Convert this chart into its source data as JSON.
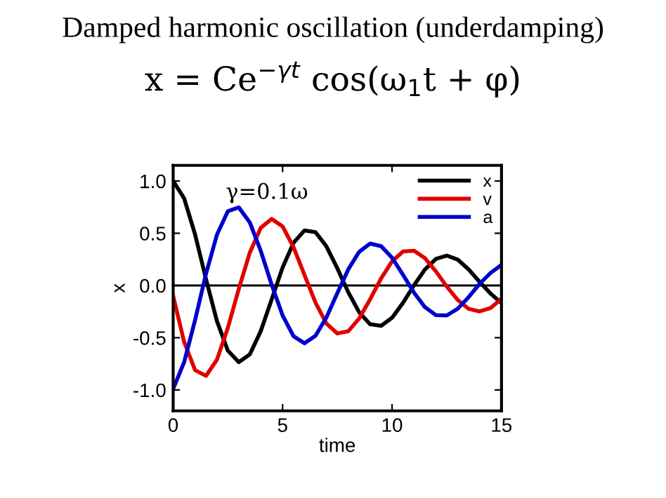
{
  "chart_data": {
    "type": "line",
    "title": "Damped harmonic oscillation (underdamping)",
    "subtitle": "x = Ce$^{−γt}$ cos(ω$_{1}$t + φ)",
    "xlabel": "time",
    "ylabel": "x",
    "annotations": [
      "γ=0.1ω"
    ],
    "x": [
      0,
      0.5,
      1,
      1.5,
      2,
      2.5,
      3,
      3.5,
      4,
      4.5,
      5,
      5.5,
      6,
      6.5,
      7,
      7.5,
      8,
      8.5,
      9,
      9.5,
      10,
      10.5,
      11,
      11.5,
      12,
      12.5,
      13,
      13.5,
      14,
      14.5,
      15
    ],
    "series": [
      {
        "name": "x",
        "color": "#000000",
        "values": [
          1,
          0.835,
          0.489,
          0.061,
          -0.341,
          -0.624,
          -0.734,
          -0.66,
          -0.438,
          -0.134,
          0.172,
          0.409,
          0.527,
          0.51,
          0.375,
          0.164,
          -0.065,
          -0.257,
          -0.371,
          -0.386,
          -0.309,
          -0.166,
          0.001,
          0.153,
          0.254,
          0.286,
          0.248,
          0.154,
          0.034,
          -0.077,
          -0.169
        ]
      },
      {
        "name": "v",
        "color": "#e00000",
        "values": [
          -0.1,
          -0.539,
          -0.81,
          -0.865,
          -0.711,
          -0.404,
          -0.031,
          0.313,
          0.551,
          0.637,
          0.565,
          0.366,
          0.101,
          -0.163,
          -0.364,
          -0.459,
          -0.438,
          -0.315,
          -0.131,
          0.068,
          0.231,
          0.325,
          0.333,
          0.262,
          0.136,
          -0.01,
          -0.139,
          -0.224,
          -0.248,
          -0.215,
          -0.128
        ]
      },
      {
        "name": "a",
        "color": "#0000cc",
        "values": [
          -0.99,
          -0.735,
          -0.332,
          0.111,
          0.486,
          0.711,
          0.747,
          0.604,
          0.332,
          0.008,
          -0.287,
          -0.486,
          -0.553,
          -0.482,
          -0.306,
          -0.073,
          0.154,
          0.323,
          0.401,
          0.376,
          0.266,
          0.103,
          -0.068,
          -0.207,
          -0.284,
          -0.287,
          -0.222,
          -0.111,
          0.016,
          0.12,
          0.197
        ]
      }
    ],
    "xlim": [
      0,
      15
    ],
    "ylim": [
      -1.2,
      1.15
    ],
    "xticks": [
      0,
      5,
      10,
      15
    ],
    "yticks": [
      {
        "value": -1,
        "label": "-1.0"
      },
      {
        "value": -0.5,
        "label": "-0.5"
      },
      {
        "value": 0,
        "label": "0.0"
      },
      {
        "value": 0.5,
        "label": "0.5"
      },
      {
        "value": 1,
        "label": "1.0"
      }
    ],
    "ref_lines": [
      {
        "axis": "y",
        "value": 0,
        "label": null,
        "color": "#000000"
      }
    ],
    "legend": "top right",
    "grid": false,
    "marker": "none",
    "line_style": "solid"
  }
}
